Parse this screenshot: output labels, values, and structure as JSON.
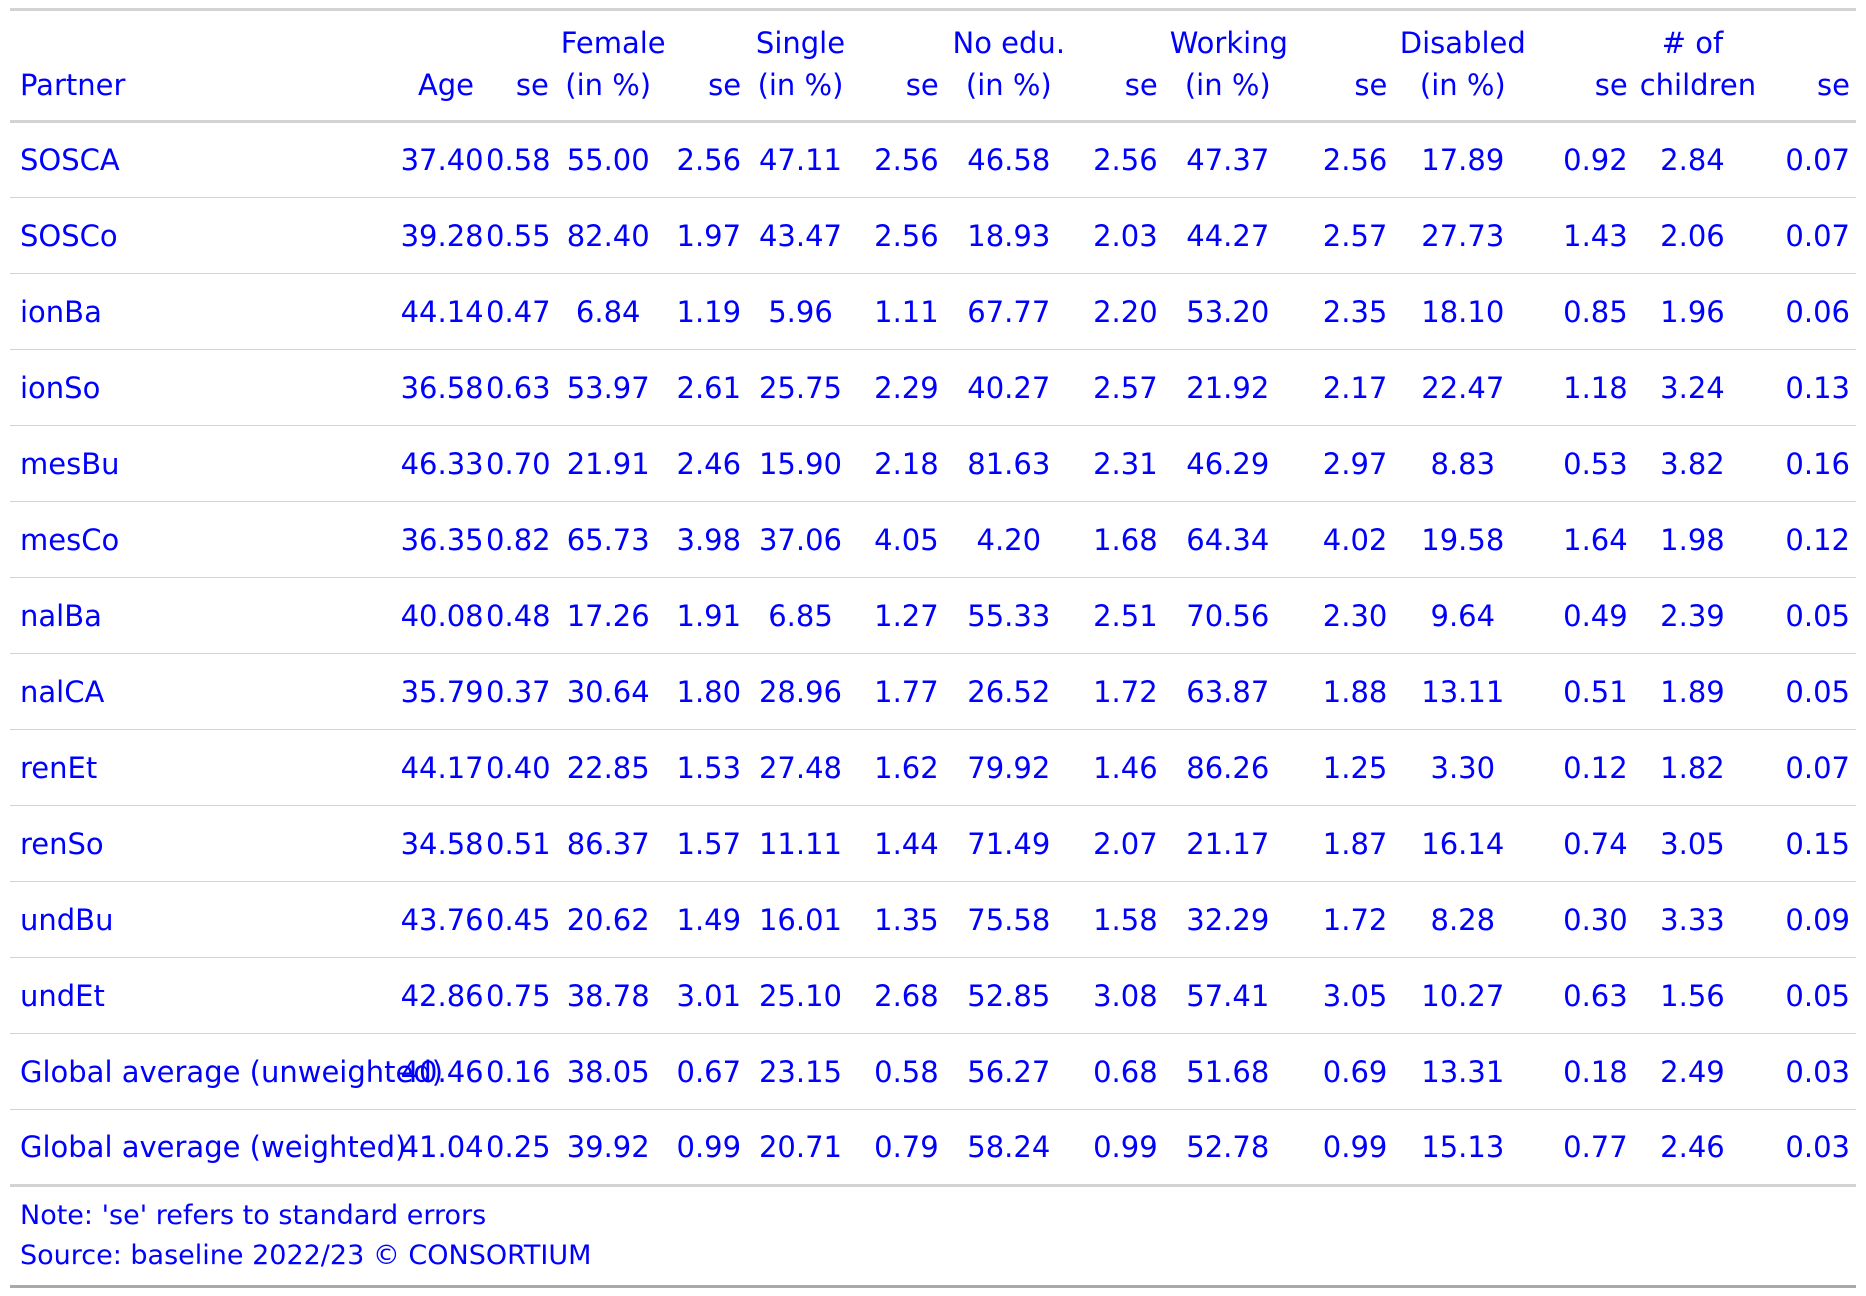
{
  "table": {
    "headers": [
      {
        "line1": "",
        "line2": "Partner"
      },
      {
        "line1": "",
        "line2": "Age"
      },
      {
        "line1": "",
        "line2": "se"
      },
      {
        "line1": "Female",
        "line2": "(in %)"
      },
      {
        "line1": "",
        "line2": "se"
      },
      {
        "line1": "Single",
        "line2": "(in %)"
      },
      {
        "line1": "",
        "line2": "se"
      },
      {
        "line1": "No edu.",
        "line2": "(in %)"
      },
      {
        "line1": "",
        "line2": "se"
      },
      {
        "line1": "Working",
        "line2": "(in %)"
      },
      {
        "line1": "",
        "line2": "se"
      },
      {
        "line1": "Disabled",
        "line2": "(in %)"
      },
      {
        "line1": "",
        "line2": "se"
      },
      {
        "line1": "# of",
        "line2": "children"
      },
      {
        "line1": "",
        "line2": "se"
      }
    ],
    "rows": [
      [
        "SOSCA",
        "37.40",
        "0.58",
        "55.00",
        "2.56",
        "47.11",
        "2.56",
        "46.58",
        "2.56",
        "47.37",
        "2.56",
        "17.89",
        "0.92",
        "2.84",
        "0.07"
      ],
      [
        "SOSCo",
        "39.28",
        "0.55",
        "82.40",
        "1.97",
        "43.47",
        "2.56",
        "18.93",
        "2.03",
        "44.27",
        "2.57",
        "27.73",
        "1.43",
        "2.06",
        "0.07"
      ],
      [
        "ionBa",
        "44.14",
        "0.47",
        "6.84",
        "1.19",
        "5.96",
        "1.11",
        "67.77",
        "2.20",
        "53.20",
        "2.35",
        "18.10",
        "0.85",
        "1.96",
        "0.06"
      ],
      [
        "ionSo",
        "36.58",
        "0.63",
        "53.97",
        "2.61",
        "25.75",
        "2.29",
        "40.27",
        "2.57",
        "21.92",
        "2.17",
        "22.47",
        "1.18",
        "3.24",
        "0.13"
      ],
      [
        "mesBu",
        "46.33",
        "0.70",
        "21.91",
        "2.46",
        "15.90",
        "2.18",
        "81.63",
        "2.31",
        "46.29",
        "2.97",
        "8.83",
        "0.53",
        "3.82",
        "0.16"
      ],
      [
        "mesCo",
        "36.35",
        "0.82",
        "65.73",
        "3.98",
        "37.06",
        "4.05",
        "4.20",
        "1.68",
        "64.34",
        "4.02",
        "19.58",
        "1.64",
        "1.98",
        "0.12"
      ],
      [
        "nalBa",
        "40.08",
        "0.48",
        "17.26",
        "1.91",
        "6.85",
        "1.27",
        "55.33",
        "2.51",
        "70.56",
        "2.30",
        "9.64",
        "0.49",
        "2.39",
        "0.05"
      ],
      [
        "nalCA",
        "35.79",
        "0.37",
        "30.64",
        "1.80",
        "28.96",
        "1.77",
        "26.52",
        "1.72",
        "63.87",
        "1.88",
        "13.11",
        "0.51",
        "1.89",
        "0.05"
      ],
      [
        "renEt",
        "44.17",
        "0.40",
        "22.85",
        "1.53",
        "27.48",
        "1.62",
        "79.92",
        "1.46",
        "86.26",
        "1.25",
        "3.30",
        "0.12",
        "1.82",
        "0.07"
      ],
      [
        "renSo",
        "34.58",
        "0.51",
        "86.37",
        "1.57",
        "11.11",
        "1.44",
        "71.49",
        "2.07",
        "21.17",
        "1.87",
        "16.14",
        "0.74",
        "3.05",
        "0.15"
      ],
      [
        "undBu",
        "43.76",
        "0.45",
        "20.62",
        "1.49",
        "16.01",
        "1.35",
        "75.58",
        "1.58",
        "32.29",
        "1.72",
        "8.28",
        "0.30",
        "3.33",
        "0.09"
      ],
      [
        "undEt",
        "42.86",
        "0.75",
        "38.78",
        "3.01",
        "25.10",
        "2.68",
        "52.85",
        "3.08",
        "57.41",
        "3.05",
        "10.27",
        "0.63",
        "1.56",
        "0.05"
      ],
      [
        "Global average (unweighted)",
        "40.46",
        "0.16",
        "38.05",
        "0.67",
        "23.15",
        "0.58",
        "56.27",
        "0.68",
        "51.68",
        "0.69",
        "13.31",
        "0.18",
        "2.49",
        "0.03"
      ],
      [
        "Global average (weighted)",
        "41.04",
        "0.25",
        "39.92",
        "0.99",
        "20.71",
        "0.79",
        "58.24",
        "0.99",
        "52.78",
        "0.99",
        "15.13",
        "0.77",
        "2.46",
        "0.03"
      ]
    ]
  },
  "footer": {
    "note": "Note: 'se' refers to standard errors",
    "source": "Source: baseline 2022/23 © CONSORTIUM"
  },
  "colors": {
    "text": "#0000ff",
    "rule_light": "#d3d3d3",
    "rule_bottom": "#a9a9a9"
  }
}
